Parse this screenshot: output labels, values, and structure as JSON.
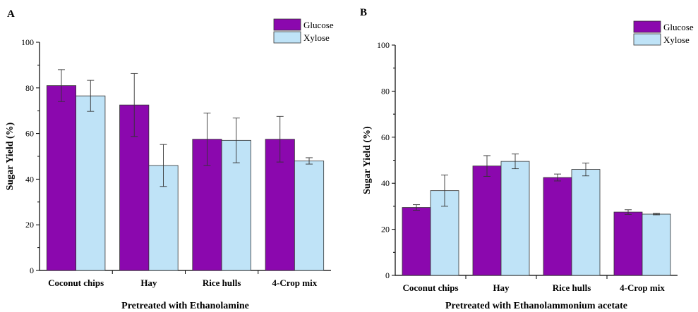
{
  "chart_data": [
    {
      "type": "bar",
      "panel_label": "A",
      "title": "",
      "xlabel": "Pretreated with Ethanolamine",
      "ylabel": "Sugar Yield (%)",
      "ylim": [
        0,
        100
      ],
      "yticks": [
        0,
        20,
        40,
        60,
        80,
        100
      ],
      "categories": [
        "Coconut chips",
        "Hay",
        "Rice hulls",
        "4-Crop mix"
      ],
      "legend_position": "top-right",
      "series": [
        {
          "name": "Glucose",
          "color": "#8B08AE",
          "values": [
            81,
            72.5,
            57.5,
            57.5
          ],
          "errors": [
            7,
            13.8,
            11.5,
            10
          ]
        },
        {
          "name": "Xylose",
          "color": "#BFE3F7",
          "values": [
            76.5,
            46,
            57,
            48
          ],
          "errors": [
            6.8,
            9.2,
            9.8,
            1.4
          ]
        }
      ]
    },
    {
      "type": "bar",
      "panel_label": "B",
      "title": "",
      "xlabel": "Pretreated with Ethanolammonium acetate",
      "ylabel": "Sugar Yield (%)",
      "ylim": [
        0,
        100
      ],
      "yticks": [
        0,
        20,
        40,
        60,
        80,
        100
      ],
      "categories": [
        "Coconut chips",
        "Hay",
        "Rice hulls",
        "4-Crop mix"
      ],
      "legend_position": "top-right",
      "series": [
        {
          "name": "Glucose",
          "color": "#8B08AE",
          "values": [
            29.5,
            47.5,
            42.5,
            27.5
          ],
          "errors": [
            1.2,
            4.5,
            1.5,
            1
          ]
        },
        {
          "name": "Xylose",
          "color": "#BFE3F7",
          "values": [
            36.8,
            49.5,
            46,
            26.6
          ],
          "errors": [
            6.8,
            3.2,
            2.8,
            0.3
          ]
        }
      ]
    }
  ]
}
